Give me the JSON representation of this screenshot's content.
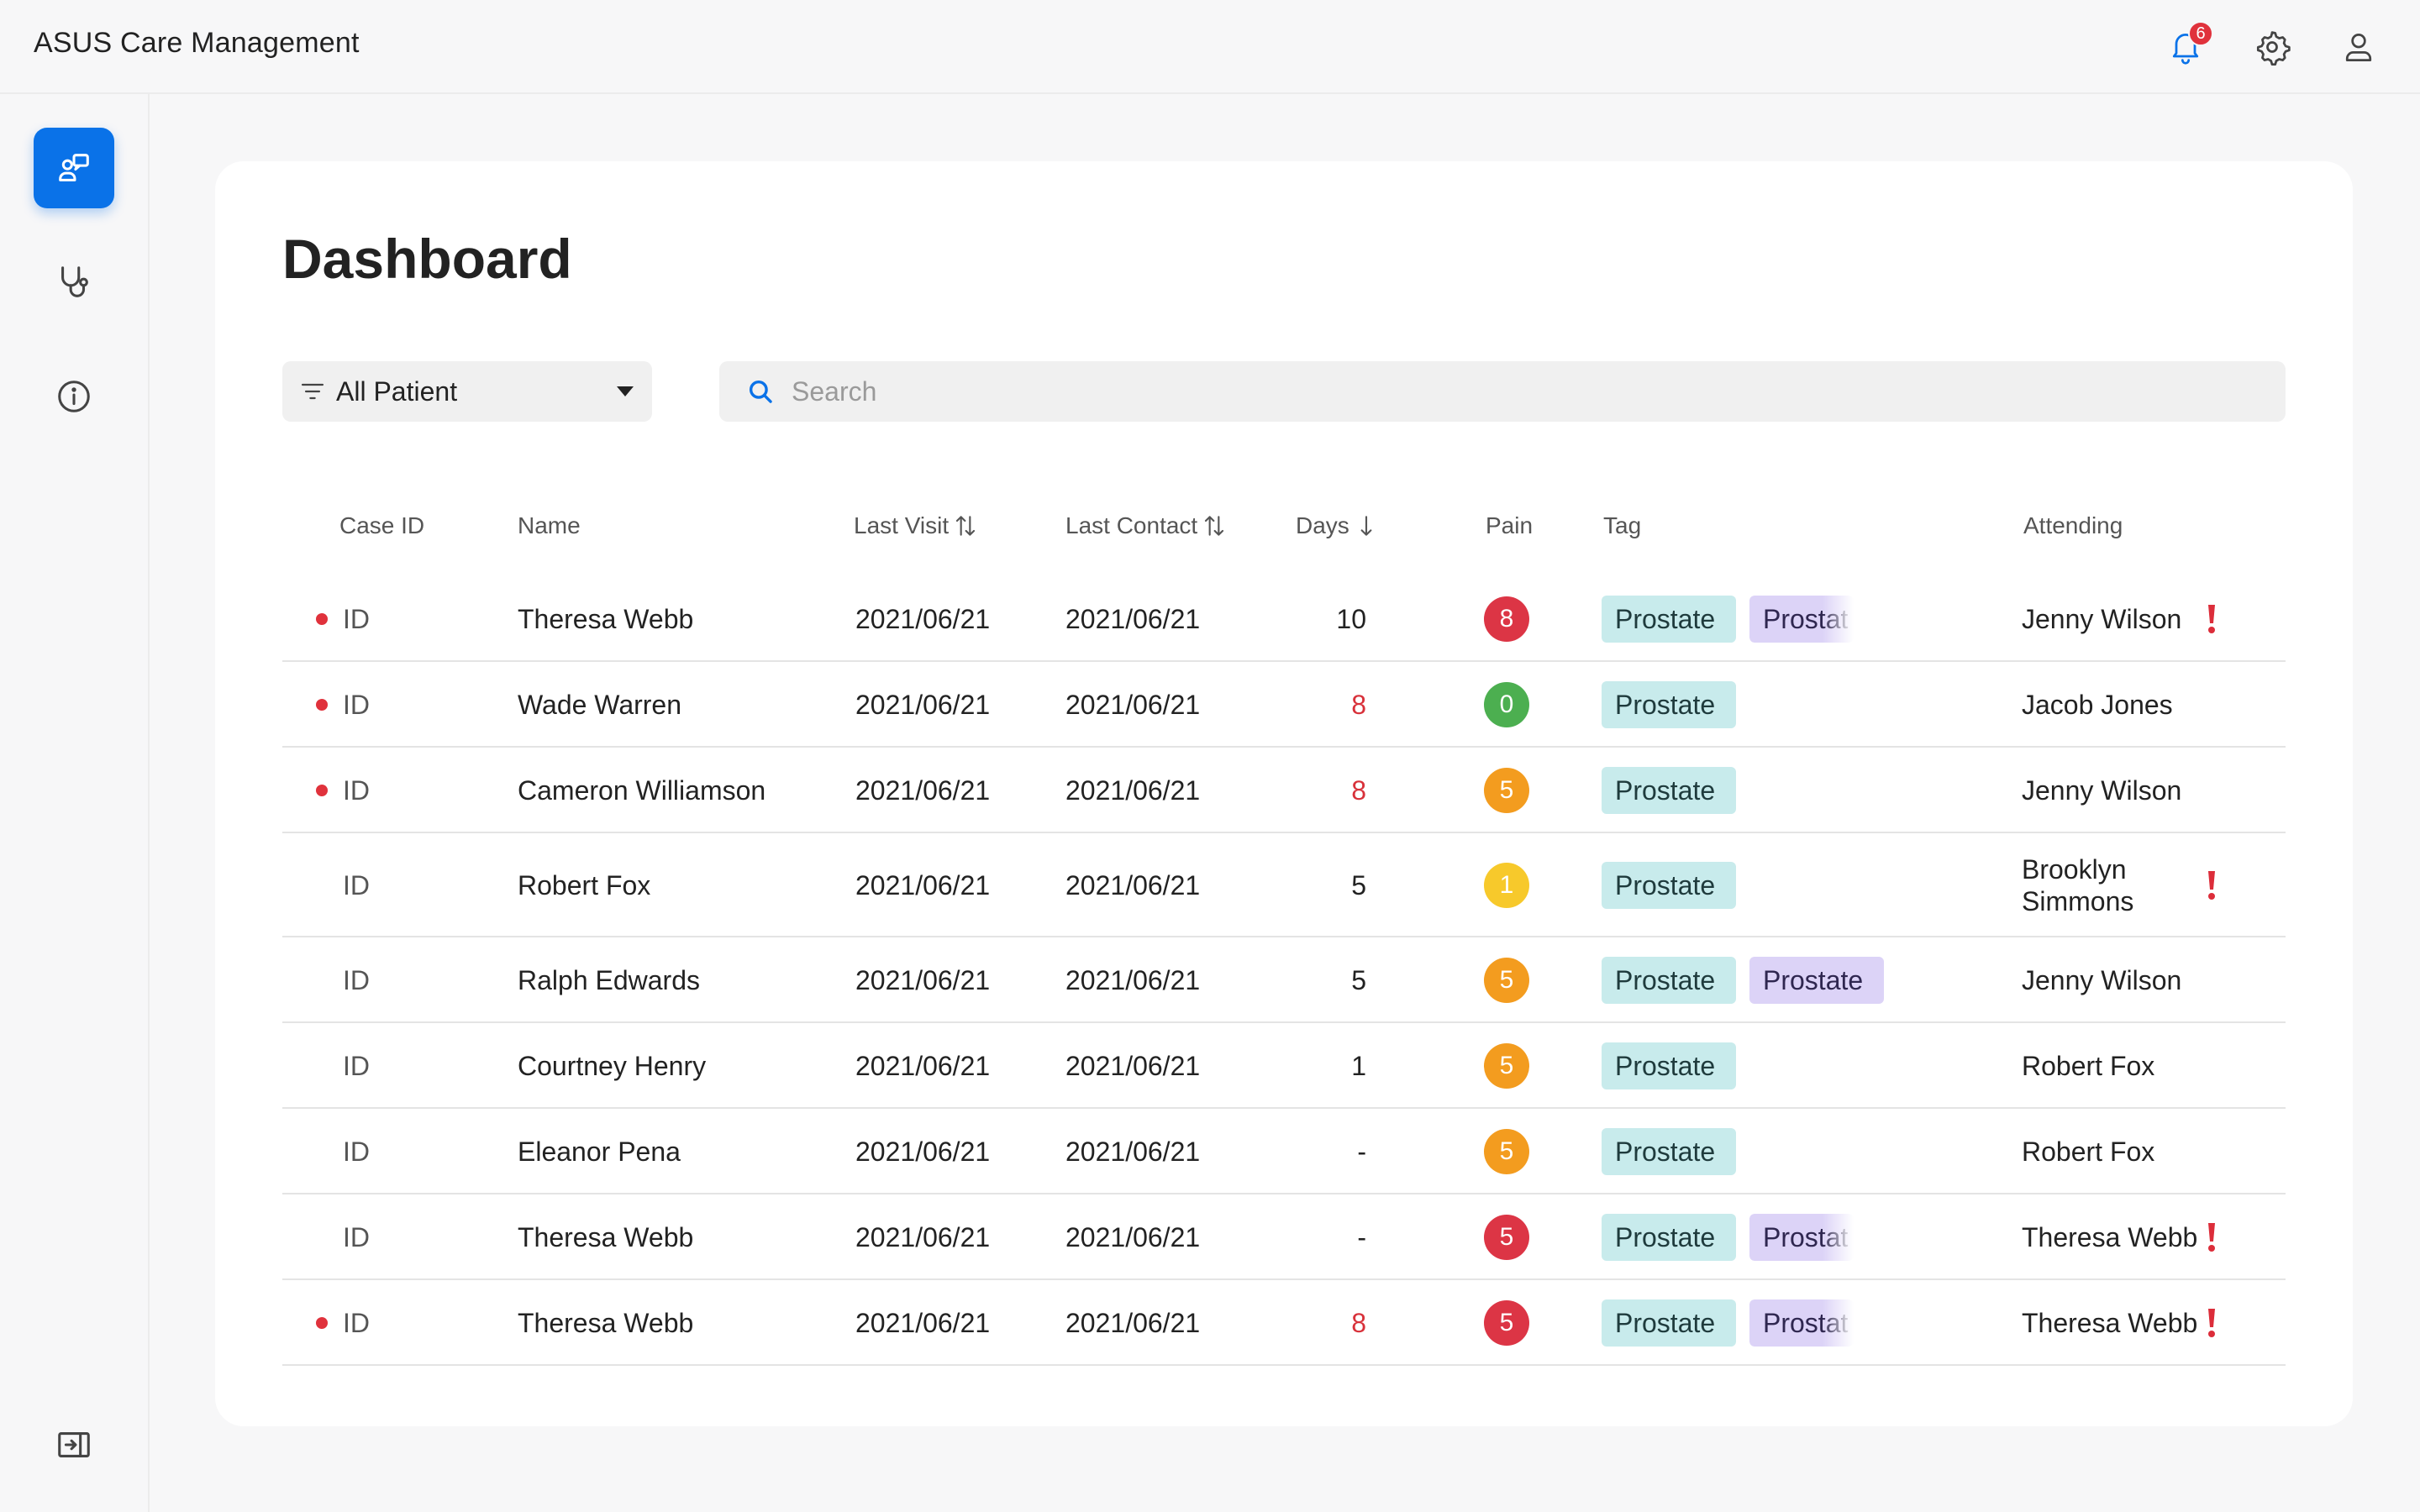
{
  "app": {
    "title": "ASUS Care Management"
  },
  "header": {
    "notifications_count": "6",
    "icons": [
      "bell-icon",
      "gear-icon",
      "user-icon"
    ]
  },
  "sidebar": {
    "items": [
      {
        "icon": "care-management-icon",
        "active": true
      },
      {
        "icon": "stethoscope-icon",
        "active": false
      },
      {
        "icon": "info-icon",
        "active": false
      }
    ],
    "collapse_icon": "collapse-sidebar-icon"
  },
  "page": {
    "title": "Dashboard"
  },
  "filter": {
    "label": "All Patient"
  },
  "search": {
    "placeholder": "Search"
  },
  "table": {
    "headers": {
      "case_id": "Case ID",
      "name": "Name",
      "last_visit": "Last Visit",
      "last_contact": "Last Contact",
      "days": "Days",
      "pain": "Pain",
      "tag": "Tag",
      "attending": "Attending"
    },
    "colors": {
      "pain_red": "#dc3545",
      "pain_green": "#4caf50",
      "pain_orange": "#f39c1f",
      "pain_yellow": "#f7c92b"
    },
    "rows": [
      {
        "dot": true,
        "id": "ID",
        "name": "Theresa Webb",
        "last_visit": "2021/06/21",
        "last_contact": "2021/06/21",
        "days": "10",
        "days_red": false,
        "pain": "8",
        "pain_color": "#dc3545",
        "tags": [
          "Prostate",
          "Prostat"
        ],
        "alert": true,
        "attending": "Jenny Wilson"
      },
      {
        "dot": true,
        "id": "ID",
        "name": "Wade Warren",
        "last_visit": "2021/06/21",
        "last_contact": "2021/06/21",
        "days": "8",
        "days_red": true,
        "pain": "0",
        "pain_color": "#4caf50",
        "tags": [
          "Prostate"
        ],
        "alert": false,
        "attending": "Jacob Jones"
      },
      {
        "dot": true,
        "id": "ID",
        "name": "Cameron Williamson",
        "last_visit": "2021/06/21",
        "last_contact": "2021/06/21",
        "days": "8",
        "days_red": true,
        "pain": "5",
        "pain_color": "#f39c1f",
        "tags": [
          "Prostate"
        ],
        "alert": false,
        "attending": "Jenny Wilson"
      },
      {
        "dot": false,
        "id": "ID",
        "name": "Robert Fox",
        "last_visit": "2021/06/21",
        "last_contact": "2021/06/21",
        "days": "5",
        "days_red": false,
        "pain": "1",
        "pain_color": "#f7c92b",
        "tags": [
          "Prostate"
        ],
        "alert": true,
        "attending": "Brooklyn Simmons"
      },
      {
        "dot": false,
        "id": "ID",
        "name": "Ralph Edwards",
        "last_visit": "2021/06/21",
        "last_contact": "2021/06/21",
        "days": "5",
        "days_red": false,
        "pain": "5",
        "pain_color": "#f39c1f",
        "tags": [
          "Prostate",
          "Prostate"
        ],
        "alert": false,
        "attending": "Jenny Wilson"
      },
      {
        "dot": false,
        "id": "ID",
        "name": "Courtney Henry",
        "last_visit": "2021/06/21",
        "last_contact": "2021/06/21",
        "days": "1",
        "days_red": false,
        "pain": "5",
        "pain_color": "#f39c1f",
        "tags": [
          "Prostate"
        ],
        "alert": false,
        "attending": "Robert Fox"
      },
      {
        "dot": false,
        "id": "ID",
        "name": "Eleanor Pena",
        "last_visit": "2021/06/21",
        "last_contact": "2021/06/21",
        "days": "-",
        "days_red": false,
        "pain": "5",
        "pain_color": "#f39c1f",
        "tags": [
          "Prostate"
        ],
        "alert": false,
        "attending": "Robert Fox"
      },
      {
        "dot": false,
        "id": "ID",
        "name": "Theresa Webb",
        "last_visit": "2021/06/21",
        "last_contact": "2021/06/21",
        "days": "-",
        "days_red": false,
        "pain": "5",
        "pain_color": "#dc3545",
        "tags": [
          "Prostate",
          "Prostat"
        ],
        "alert": true,
        "attending": "Theresa Webb"
      },
      {
        "dot": true,
        "id": "ID",
        "name": "Theresa Webb",
        "last_visit": "2021/06/21",
        "last_contact": "2021/06/21",
        "days": "8",
        "days_red": true,
        "pain": "5",
        "pain_color": "#dc3545",
        "tags": [
          "Prostate",
          "Prostat"
        ],
        "alert": true,
        "attending": "Theresa Webb"
      }
    ]
  }
}
